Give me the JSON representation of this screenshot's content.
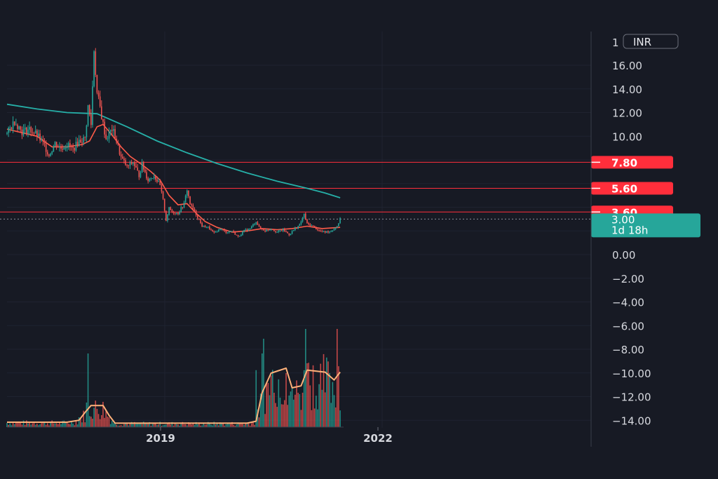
{
  "chart_data": {
    "type": "candlestick",
    "currency": "INR",
    "y_axis": {
      "ticks": [
        16.0,
        14.0,
        12.0,
        10.0,
        8.0,
        6.0,
        4.0,
        2.0,
        0.0,
        -2.0,
        -4.0,
        -6.0,
        -8.0,
        -10.0,
        -12.0,
        -14.0
      ],
      "tick_labels": [
        "16.00",
        "14.00",
        "12.00",
        "10.00",
        "",
        "",
        "",
        "",
        "0.00",
        "−2.00",
        "−4.00",
        "−6.00",
        "−8.00",
        "−10.00",
        "−12.00",
        "−14.00"
      ],
      "top_label": "1",
      "ylim": [
        -14.8,
        18.0
      ]
    },
    "x_axis": {
      "labels": [
        "2019",
        "2022"
      ]
    },
    "grid": true,
    "horizontal_levels": [
      {
        "value": 7.8,
        "label": "7.80",
        "color": "#ff2e3b"
      },
      {
        "value": 5.6,
        "label": "5.60",
        "color": "#ff2e3b"
      },
      {
        "value": 3.6,
        "label": "3.60",
        "color": "#ff2e3b"
      }
    ],
    "last_price": {
      "value": 3.0,
      "label": "3.00",
      "countdown": "1d 18h",
      "color": "#26a69a"
    },
    "candle_colors": {
      "up": "#26a69a",
      "down": "#ef5350"
    },
    "ma_long_color": "#26b0a8",
    "ma_short_color": "#ff5b49",
    "volume_ma_color": "#ffb27a",
    "close_path": [
      [
        0,
        10.2
      ],
      [
        5,
        11.3
      ],
      [
        10,
        10.4
      ],
      [
        15,
        10.6
      ],
      [
        20,
        10.1
      ],
      [
        25,
        9.2
      ],
      [
        28,
        8.4
      ],
      [
        32,
        9.4
      ],
      [
        36,
        9.0
      ],
      [
        40,
        9.3
      ],
      [
        44,
        8.9
      ],
      [
        48,
        9.6
      ],
      [
        52,
        9.8
      ],
      [
        54,
        12.5
      ],
      [
        56,
        11.0
      ],
      [
        58,
        17.4
      ],
      [
        60,
        13.6
      ],
      [
        62,
        12.4
      ],
      [
        64,
        11.0
      ],
      [
        66,
        9.8
      ],
      [
        70,
        10.6
      ],
      [
        72,
        10.0
      ],
      [
        76,
        8.2
      ],
      [
        80,
        7.4
      ],
      [
        84,
        7.8
      ],
      [
        88,
        6.7
      ],
      [
        90,
        7.6
      ],
      [
        94,
        6.3
      ],
      [
        98,
        6.7
      ],
      [
        102,
        5.8
      ],
      [
        104,
        4.6
      ],
      [
        106,
        2.9
      ],
      [
        108,
        3.9
      ],
      [
        110,
        3.6
      ],
      [
        114,
        3.5
      ],
      [
        118,
        4.3
      ],
      [
        120,
        5.5
      ],
      [
        122,
        4.3
      ],
      [
        126,
        3.4
      ],
      [
        130,
        2.4
      ],
      [
        134,
        2.3
      ],
      [
        138,
        1.8
      ],
      [
        142,
        2.2
      ],
      [
        146,
        1.9
      ],
      [
        150,
        2.0
      ],
      [
        154,
        1.5
      ],
      [
        158,
        2.0
      ],
      [
        162,
        2.2
      ],
      [
        166,
        2.8
      ],
      [
        168,
        2.3
      ],
      [
        172,
        2.0
      ],
      [
        176,
        2.2
      ],
      [
        180,
        1.9
      ],
      [
        184,
        2.1
      ],
      [
        188,
        1.7
      ],
      [
        192,
        2.2
      ],
      [
        195,
        2.5
      ],
      [
        198,
        3.4
      ],
      [
        200,
        2.6
      ],
      [
        204,
        2.4
      ],
      [
        208,
        2.0
      ],
      [
        212,
        1.9
      ],
      [
        216,
        2.0
      ],
      [
        218,
        2.2
      ],
      [
        220,
        2.4
      ],
      [
        222,
        3.0
      ]
    ],
    "ma_long": [
      [
        0,
        12.7
      ],
      [
        20,
        12.3
      ],
      [
        40,
        12.0
      ],
      [
        60,
        11.9
      ],
      [
        80,
        10.8
      ],
      [
        100,
        9.6
      ],
      [
        120,
        8.6
      ],
      [
        140,
        7.7
      ],
      [
        160,
        6.9
      ],
      [
        180,
        6.2
      ],
      [
        200,
        5.6
      ],
      [
        212,
        5.2
      ],
      [
        222,
        4.8
      ]
    ],
    "ma_short": [
      [
        0,
        10.6
      ],
      [
        10,
        10.3
      ],
      [
        20,
        10.0
      ],
      [
        30,
        9.1
      ],
      [
        40,
        9.1
      ],
      [
        50,
        9.3
      ],
      [
        55,
        9.6
      ],
      [
        60,
        10.8
      ],
      [
        64,
        11.0
      ],
      [
        70,
        10.1
      ],
      [
        76,
        9.1
      ],
      [
        82,
        8.3
      ],
      [
        90,
        7.6
      ],
      [
        96,
        7.0
      ],
      [
        102,
        6.3
      ],
      [
        108,
        5.0
      ],
      [
        114,
        4.2
      ],
      [
        120,
        4.3
      ],
      [
        126,
        3.5
      ],
      [
        132,
        2.8
      ],
      [
        140,
        2.3
      ],
      [
        150,
        1.9
      ],
      [
        160,
        2.0
      ],
      [
        170,
        2.2
      ],
      [
        180,
        2.1
      ],
      [
        190,
        2.2
      ],
      [
        200,
        2.4
      ],
      [
        210,
        2.2
      ],
      [
        222,
        2.3
      ]
    ],
    "volume_ma": [
      [
        0,
        0.05
      ],
      [
        40,
        0.05
      ],
      [
        48,
        0.07
      ],
      [
        52,
        0.15
      ],
      [
        56,
        0.22
      ],
      [
        64,
        0.22
      ],
      [
        68,
        0.12
      ],
      [
        72,
        0.04
      ],
      [
        120,
        0.04
      ],
      [
        160,
        0.04
      ],
      [
        166,
        0.06
      ],
      [
        170,
        0.35
      ],
      [
        176,
        0.55
      ],
      [
        186,
        0.6
      ],
      [
        190,
        0.4
      ],
      [
        196,
        0.42
      ],
      [
        200,
        0.58
      ],
      [
        212,
        0.56
      ],
      [
        218,
        0.48
      ],
      [
        222,
        0.56
      ]
    ],
    "volume_spikes": [
      [
        54,
        0.75
      ],
      [
        53,
        0.25
      ],
      [
        48,
        0.1
      ],
      [
        166,
        0.58
      ],
      [
        170,
        0.75
      ],
      [
        171,
        0.9
      ],
      [
        174,
        0.45
      ],
      [
        186,
        0.55
      ],
      [
        199,
        1.0
      ],
      [
        200,
        0.65
      ],
      [
        215,
        0.55
      ],
      [
        220,
        1.0
      ],
      [
        221,
        0.62
      ],
      [
        178,
        0.35
      ],
      [
        182,
        0.3
      ],
      [
        190,
        0.4
      ],
      [
        194,
        0.35
      ],
      [
        206,
        0.32
      ],
      [
        210,
        0.38
      ]
    ]
  }
}
